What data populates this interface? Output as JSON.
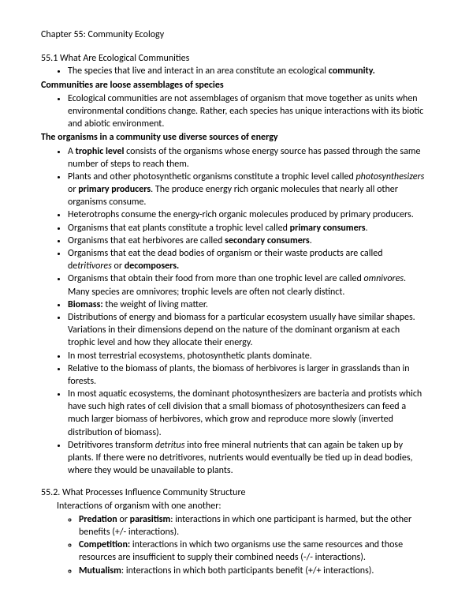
{
  "chapter_title": "Chapter 55: Community Ecology",
  "s551": {
    "heading": "55.1 What Are Ecological Communities",
    "bullet1_a": "The species that live and interact in an area constitute an ecological ",
    "bullet1_b": "community.",
    "sub1": "Communities are loose assemblages of species",
    "b2": "Ecological communities are not assemblages of organism that move together as units when environmental conditions change. Rather, each species has unique interactions with its biotic and abiotic environment.",
    "sub2": "The organisms in a community use diverse sources of energy",
    "b3_a": "A ",
    "b3_b": "trophic level",
    "b3_c": " consists of the organisms whose energy source has passed through the same number of steps to reach them.",
    "b4_a": " Plants and other photosynthetic organisms constitute a trophic level called ",
    "b4_b": "photosynthesizers",
    "b4_c": " or ",
    "b4_d": "primary producers",
    "b4_e": ". The produce energy rich organic molecules that nearly all other organisms consume.",
    "b5": "Heterotrophs consume the energy-rich organic molecules produced by primary producers.",
    "b6_a": "Organisms that eat plants constitute a trophic level called ",
    "b6_b": "primary consumers",
    "b6_c": ".",
    "b7_a": "Organisms that eat herbivores are called ",
    "b7_b": "secondary consumers",
    "b7_c": ".",
    "b8_a": "Organisms that eat the dead bodies of organism or their waste products are called de",
    "b8_b": "tritivores",
    "b8_c": " or ",
    "b8_d": "decomposers.",
    "b9_a": "Organisms that obtain their food from more than one trophic level are called ",
    "b9_b": "omnivores",
    "b9_c": ". Many species are omnivores; trophic levels are often not clearly distinct.",
    "b10_a": "Biomass:",
    "b10_b": " the weight of living matter.",
    "b11": "Distributions of energy and biomass for a particular ecosystem usually have similar shapes. Variations in their dimensions depend on the nature of the dominant organism at each trophic level and how they allocate their energy.",
    "b12": "In most terrestrial ecosystems, photosynthetic plants dominate.",
    "b13": "Relative to the biomass of plants, the biomass of herbivores is larger in grasslands than in forests.",
    "b14": "In most aquatic ecosystems, the dominant photosynthesizers are bacteria and protists which have such high rates of cell division that a small biomass of photosynthesizers can feed a much larger biomass of herbivores, which grow and reproduce more slowly (inverted distribution of biomass).",
    "b15_a": "Detritivores transform ",
    "b15_b": "detritus",
    "b15_c": " into free mineral nutrients that can again be taken up by plants. If there were no detritivores, nutrients would eventually be tied up in dead bodies, where they would be unavailable to plants."
  },
  "s552": {
    "heading": "55.2. What Processes Influence Community Structure",
    "intro": "Interactions of organism with one another:",
    "i1_a": "Predation",
    "i1_b": " or ",
    "i1_c": "parasitism",
    "i1_d": ": interactions in which one participant is harmed, but the other benefits (+/- interactions).",
    "i2_a": "Competition:",
    "i2_b": " interactions in which two organisms use the same resources and those resources are insufficient to supply their combined needs (-/- interactions).",
    "i3_a": "Mutualism",
    "i3_b": ": interactions in which both participants benefit (+/+ interactions)."
  }
}
